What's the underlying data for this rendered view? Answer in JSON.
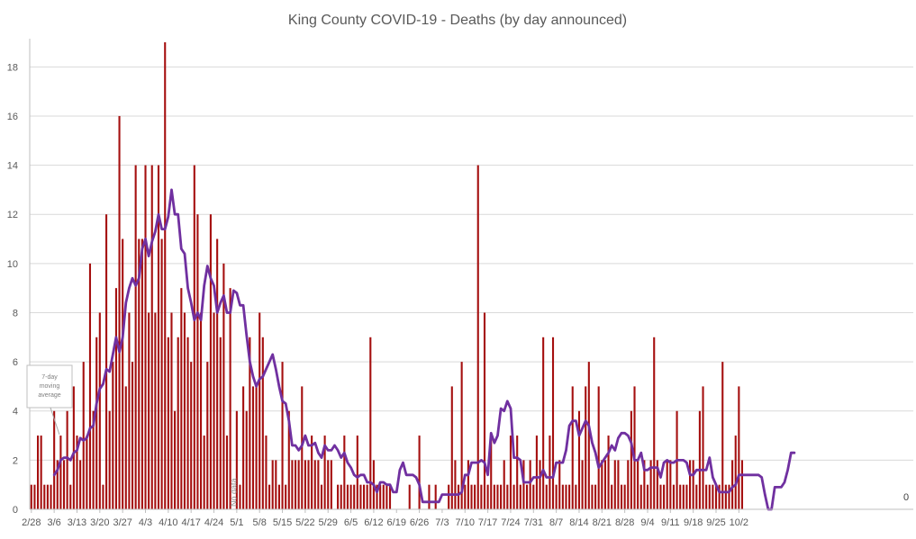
{
  "chart_data": {
    "type": "bar",
    "title": "King County COVID-19 - Deaths (by day announced)",
    "xlabel": "",
    "ylabel": "",
    "ylim": [
      0,
      19
    ],
    "yticks": [
      0,
      2,
      4,
      6,
      8,
      10,
      12,
      14,
      16,
      18
    ],
    "xtick_labels": [
      "2/28",
      "3/6",
      "3/13",
      "3/20",
      "3/27",
      "4/3",
      "4/10",
      "4/17",
      "4/24",
      "5/1",
      "5/8",
      "5/15",
      "5/22",
      "5/29",
      "6/5",
      "6/12",
      "6/19",
      "6/26",
      "7/3",
      "7/10",
      "7/17",
      "7/24",
      "7/31",
      "8/7",
      "8/14",
      "8/21",
      "8/28",
      "9/4",
      "9/11",
      "9/18",
      "9/25",
      "10/2"
    ],
    "grid": true,
    "colors": {
      "bars": "#a50f0f",
      "average": "#7030a0",
      "grid": "#d9d9d9",
      "axis": "#bfbfbf",
      "text": "#595959"
    },
    "annotations": {
      "moving_average_note": "7-day moving average",
      "no_data_label": "No data",
      "end_value_label": "0"
    },
    "series": [
      {
        "name": "Deaths",
        "type": "bar",
        "values": [
          1,
          1,
          3,
          3,
          1,
          1,
          1,
          4,
          2,
          3,
          2,
          4,
          1,
          5,
          3,
          2,
          6,
          3,
          10,
          4,
          7,
          8,
          1,
          12,
          4,
          6,
          9,
          16,
          11,
          5,
          8,
          6,
          14,
          11,
          11,
          14,
          8,
          14,
          8,
          14,
          11,
          19,
          7,
          8,
          4,
          7,
          9,
          8,
          7,
          6,
          14,
          12,
          8,
          3,
          6,
          12,
          8,
          11,
          7,
          10,
          3,
          9,
          0,
          4,
          1,
          5,
          4,
          7,
          5,
          5,
          8,
          7,
          3,
          1,
          2,
          2,
          1,
          6,
          1,
          4,
          2,
          2,
          2,
          5,
          2,
          2,
          3,
          2,
          2,
          1,
          3,
          2,
          2,
          0,
          1,
          1,
          3,
          1,
          1,
          1,
          3,
          1,
          1,
          1,
          7,
          2,
          1,
          1,
          1,
          1,
          1,
          0,
          0,
          0,
          0,
          0,
          1,
          0,
          0,
          3,
          0,
          0,
          1,
          0,
          1,
          0,
          0,
          0,
          1,
          5,
          2,
          1,
          6,
          1,
          2,
          1,
          1,
          14,
          1,
          8,
          1,
          3,
          1,
          1,
          1,
          2,
          1,
          3,
          1,
          3,
          1,
          2,
          1,
          2,
          1,
          3,
          2,
          7,
          1,
          3,
          7,
          1,
          2,
          1,
          1,
          1,
          5,
          1,
          4,
          2,
          5,
          6,
          1,
          1,
          5,
          2,
          2,
          3,
          1,
          2,
          2,
          1,
          1,
          2,
          4,
          5,
          2,
          1,
          2,
          1,
          2,
          7,
          2,
          1,
          1,
          2,
          2,
          1,
          4,
          1,
          1,
          1,
          2,
          2,
          1,
          4,
          5,
          1,
          1,
          1,
          1,
          1,
          6,
          1,
          1,
          2,
          3,
          5,
          2
        ],
        "start_date": "2020-02-28"
      },
      {
        "name": "7-day moving average",
        "type": "line",
        "start_date": "2020-03-06",
        "values": [
          1.4,
          1.6,
          2.0,
          2.1,
          2.1,
          2.0,
          2.3,
          2.4,
          2.9,
          2.8,
          2.9,
          3.3,
          3.4,
          4.3,
          4.9,
          5.1,
          5.7,
          5.6,
          6.3,
          7.0,
          6.4,
          7.0,
          8.4,
          9.0,
          9.4,
          9.1,
          9.4,
          10.6,
          11.0,
          10.3,
          10.9,
          11.3,
          12.0,
          11.4,
          11.4,
          11.9,
          13.0,
          12.0,
          12.0,
          10.6,
          10.4,
          9.0,
          8.4,
          7.7,
          8.0,
          7.7,
          9.1,
          9.9,
          9.4,
          9.1,
          8.0,
          8.4,
          8.7,
          8.0,
          8.0,
          8.9,
          8.8,
          8.3,
          8.3,
          7.1,
          6.0,
          5.4,
          5.0,
          5.3,
          5.4,
          5.7,
          6.0,
          6.3,
          5.7,
          5.0,
          4.4,
          4.3,
          3.6,
          2.6,
          2.6,
          2.4,
          2.6,
          3.0,
          2.6,
          2.6,
          2.7,
          2.3,
          2.1,
          2.6,
          2.4,
          2.4,
          2.6,
          2.4,
          2.1,
          2.3,
          1.9,
          1.7,
          1.4,
          1.3,
          1.4,
          1.4,
          1.1,
          1.1,
          1.0,
          0.7,
          1.1,
          1.1,
          1.0,
          1.0,
          0.7,
          0.7,
          1.6,
          1.9,
          1.4,
          1.4,
          1.4,
          1.3,
          1.0,
          0.3,
          0.3,
          0.3,
          0.3,
          0.3,
          0.3,
          0.6,
          0.6,
          0.6,
          0.6,
          0.6,
          0.6,
          0.7,
          1.4,
          1.4,
          1.9,
          1.9,
          1.9,
          2.0,
          1.9,
          1.4,
          3.1,
          2.7,
          3.0,
          4.1,
          4.0,
          4.4,
          4.1,
          2.1,
          2.1,
          2.0,
          1.1,
          1.1,
          1.1,
          1.3,
          1.3,
          1.3,
          1.6,
          1.3,
          1.3,
          1.3,
          1.9,
          1.9,
          1.9,
          2.4,
          3.4,
          3.6,
          3.6,
          3.0,
          3.3,
          3.6,
          3.4,
          2.7,
          2.3,
          1.7,
          1.9,
          2.1,
          2.3,
          2.6,
          2.4,
          2.9,
          3.1,
          3.1,
          3.0,
          2.7,
          2.0,
          2.0,
          2.3,
          1.6,
          1.6,
          1.7,
          1.7,
          1.7,
          1.3,
          1.9,
          2.0,
          1.9,
          1.9,
          2.0,
          2.0,
          2.0,
          1.9,
          1.4,
          1.4,
          1.6,
          1.6,
          1.6,
          1.6,
          2.1,
          1.3,
          1.0,
          0.7,
          0.7,
          0.7,
          0.7,
          0.9,
          1.0,
          1.4,
          1.4,
          1.4,
          1.4,
          1.4,
          1.4,
          1.4,
          1.3,
          0.6,
          0.0,
          0.0,
          0.9,
          0.9,
          0.9,
          1.1,
          1.6,
          2.3,
          2.3
        ]
      }
    ]
  }
}
